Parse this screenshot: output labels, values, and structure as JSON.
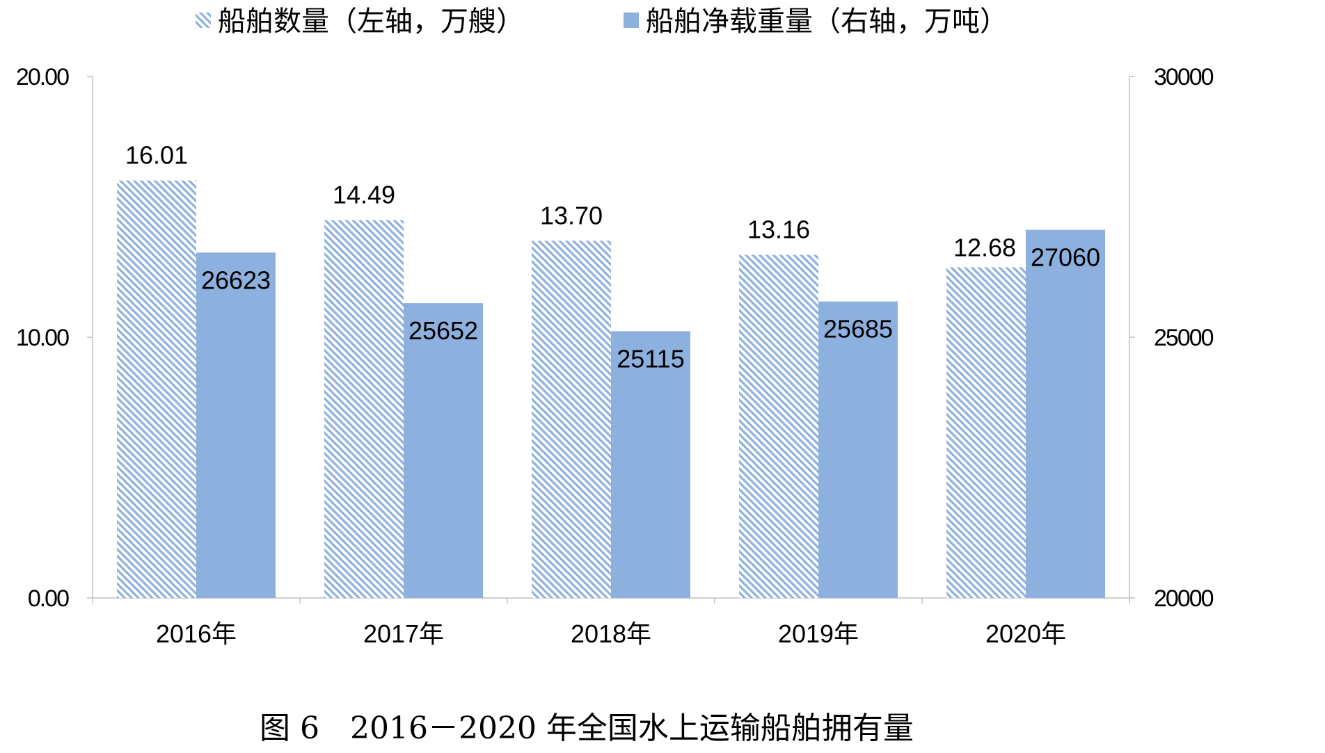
{
  "chart_data": {
    "type": "bar",
    "categories": [
      "2016年",
      "2017年",
      "2018年",
      "2019年",
      "2020年"
    ],
    "series": [
      {
        "name": "船舶数量（左轴，万艘）",
        "axis": "left",
        "values": [
          16.01,
          14.49,
          13.7,
          13.16,
          12.68
        ],
        "labels": [
          "16.01",
          "14.49",
          "13.70",
          "13.16",
          "12.68"
        ],
        "color": "#8EB0DE",
        "pattern": "diagonal-hatch"
      },
      {
        "name": "船舶净载重量（右轴，万吨）",
        "axis": "right",
        "values": [
          26623,
          25652,
          25115,
          25685,
          27060
        ],
        "labels": [
          "26623",
          "25652",
          "25115",
          "25685",
          "27060"
        ],
        "color": "#8EB0DE",
        "pattern": "solid"
      }
    ],
    "left_axis": {
      "range": [
        0,
        20
      ],
      "ticks": [
        "0.00",
        "10.00",
        "20.00"
      ],
      "tick_values": [
        0,
        10,
        20
      ]
    },
    "right_axis": {
      "range": [
        20000,
        30000
      ],
      "ticks": [
        "20000",
        "25000",
        "30000"
      ],
      "tick_values": [
        20000,
        25000,
        30000
      ]
    },
    "legend_position": "top-center",
    "grid": false,
    "caption": "图 6　2016－2020 年全国水上运输船舶拥有量"
  }
}
